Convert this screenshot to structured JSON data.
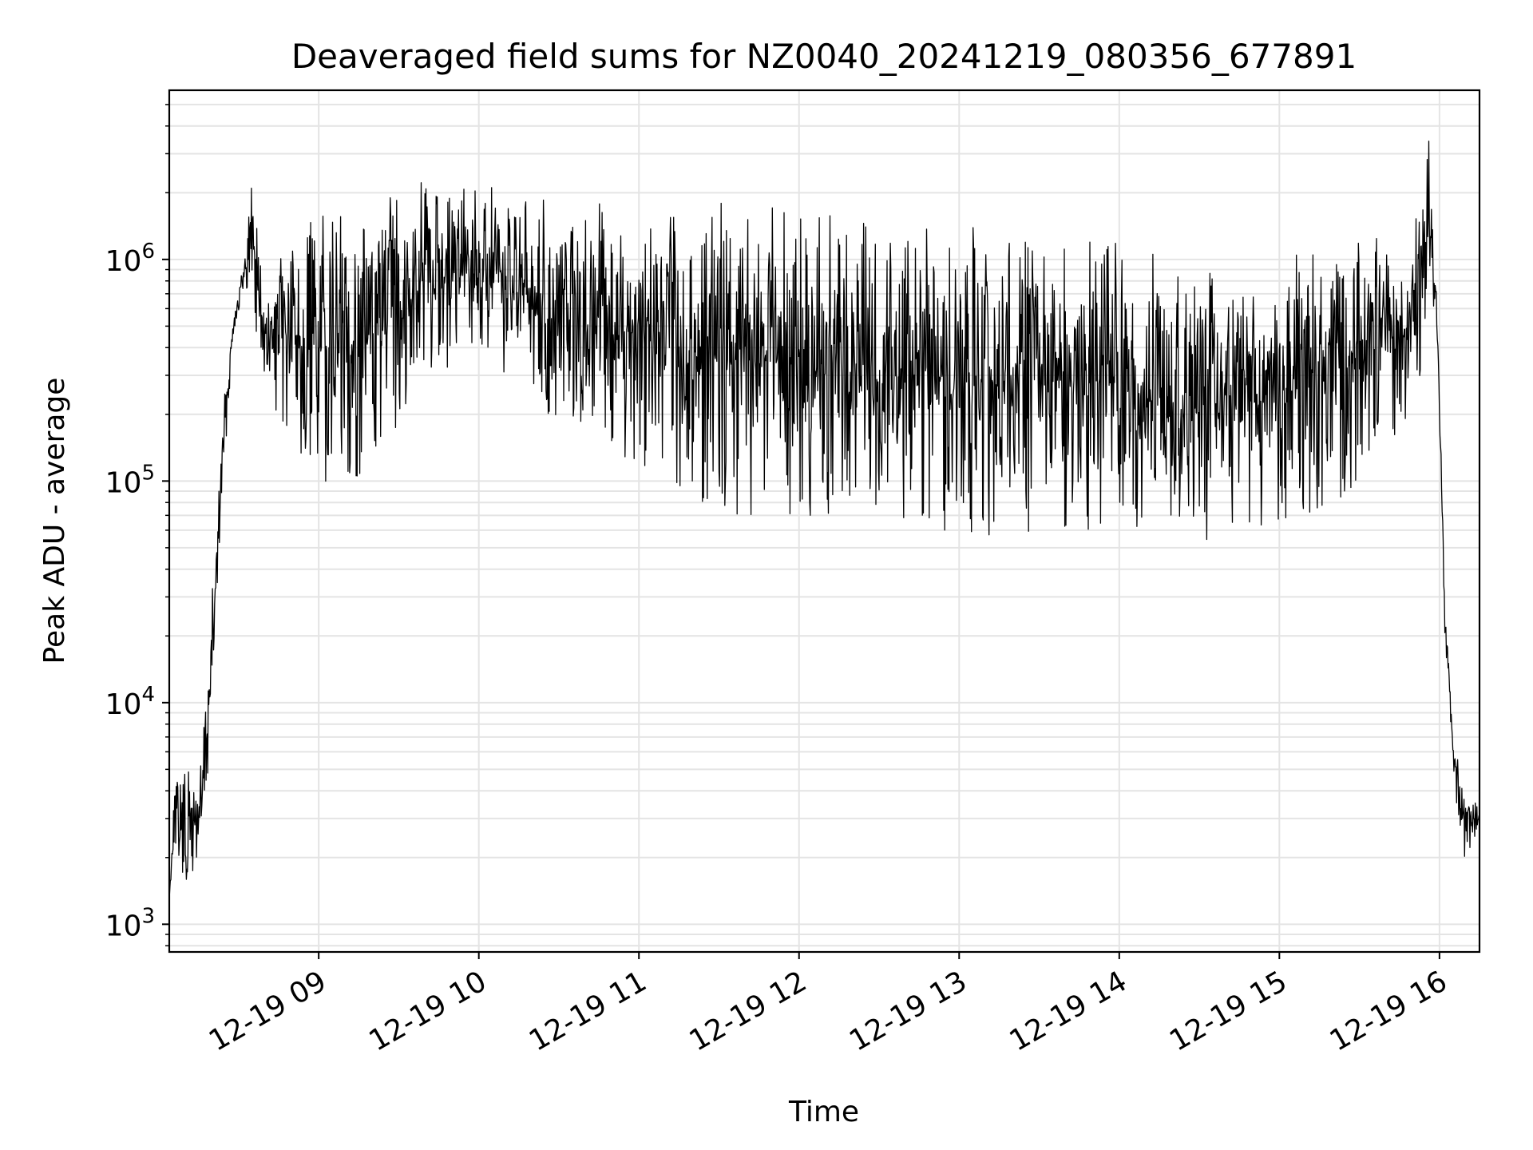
{
  "chart_data": {
    "type": "line",
    "title": "Deaveraged field sums for NZ0040_20241219_080356_677891",
    "xlabel": "Time",
    "ylabel": "Peak ADU - average",
    "yscale": "log",
    "ylim": [
      750,
      5800000
    ],
    "xlim": [
      "2024-12-19 08:04",
      "2024-12-19 16:15"
    ],
    "grid": true,
    "x_tick_labels": [
      "12-19 09",
      "12-19 10",
      "12-19 11",
      "12-19 12",
      "12-19 13",
      "12-19 14",
      "12-19 15",
      "12-19 16"
    ],
    "y_tick_labels": [
      {
        "base": "10",
        "exp": "3"
      },
      {
        "base": "10",
        "exp": "4"
      },
      {
        "base": "10",
        "exp": "5"
      },
      {
        "base": "10",
        "exp": "6"
      }
    ],
    "series": [
      {
        "color": "#000000",
        "envelope": {
          "description_units": "time vs ADU; upper and lower bounds of the dense oscillating signal",
          "points": [
            {
              "t": "2024-12-19 08:04",
              "hi": 1300,
              "lo": 1300
            },
            {
              "t": "2024-12-19 08:06",
              "hi": 4500,
              "lo": 2500
            },
            {
              "t": "2024-12-19 08:10",
              "hi": 5500,
              "lo": 1100
            },
            {
              "t": "2024-12-19 08:16",
              "hi": 6800,
              "lo": 1500
            },
            {
              "t": "2024-12-19 08:20",
              "hi": 30000,
              "lo": 8000
            },
            {
              "t": "2024-12-19 08:24",
              "hi": 200000,
              "lo": 90000
            },
            {
              "t": "2024-12-19 08:28",
              "hi": 600000,
              "lo": 450000
            },
            {
              "t": "2024-12-19 08:32",
              "hi": 1000000,
              "lo": 700000
            },
            {
              "t": "2024-12-19 08:35",
              "hi": 3100000,
              "lo": 600000
            },
            {
              "t": "2024-12-19 08:40",
              "hi": 600000,
              "lo": 250000
            },
            {
              "t": "2024-12-19 08:50",
              "hi": 1500000,
              "lo": 150000
            },
            {
              "t": "2024-12-19 09:00",
              "hi": 1800000,
              "lo": 90000
            },
            {
              "t": "2024-12-19 09:20",
              "hi": 1900000,
              "lo": 110000
            },
            {
              "t": "2024-12-19 09:40",
              "hi": 2300000,
              "lo": 300000
            },
            {
              "t": "2024-12-19 10:00",
              "hi": 2200000,
              "lo": 350000
            },
            {
              "t": "2024-12-19 10:30",
              "hi": 1900000,
              "lo": 150000
            },
            {
              "t": "2024-12-19 11:00",
              "hi": 1800000,
              "lo": 120000
            },
            {
              "t": "2024-12-19 11:30",
              "hi": 1800000,
              "lo": 70000
            },
            {
              "t": "2024-12-19 12:00",
              "hi": 1700000,
              "lo": 70000
            },
            {
              "t": "2024-12-19 12:30",
              "hi": 1600000,
              "lo": 70000
            },
            {
              "t": "2024-12-19 13:00",
              "hi": 1500000,
              "lo": 55000
            },
            {
              "t": "2024-12-19 13:30",
              "hi": 1400000,
              "lo": 60000
            },
            {
              "t": "2024-12-19 14:00",
              "hi": 1300000,
              "lo": 60000
            },
            {
              "t": "2024-12-19 14:20",
              "hi": 1000000,
              "lo": 42000
            },
            {
              "t": "2024-12-19 14:40",
              "hi": 1000000,
              "lo": 60000
            },
            {
              "t": "2024-12-19 15:00",
              "hi": 800000,
              "lo": 65000
            },
            {
              "t": "2024-12-19 15:15",
              "hi": 1600000,
              "lo": 70000
            },
            {
              "t": "2024-12-19 15:30",
              "hi": 1500000,
              "lo": 100000
            },
            {
              "t": "2024-12-19 15:50",
              "hi": 1300000,
              "lo": 150000
            },
            {
              "t": "2024-12-19 15:56",
              "hi": 3700000,
              "lo": 700000
            },
            {
              "t": "2024-12-19 15:59",
              "hi": 800000,
              "lo": 500000
            },
            {
              "t": "2024-12-19 16:02",
              "hi": 30000,
              "lo": 20000
            },
            {
              "t": "2024-12-19 16:05",
              "hi": 8000,
              "lo": 5000
            },
            {
              "t": "2024-12-19 16:08",
              "hi": 5000,
              "lo": 1900
            },
            {
              "t": "2024-12-19 16:15",
              "hi": 3500,
              "lo": 2500
            }
          ]
        }
      }
    ]
  }
}
